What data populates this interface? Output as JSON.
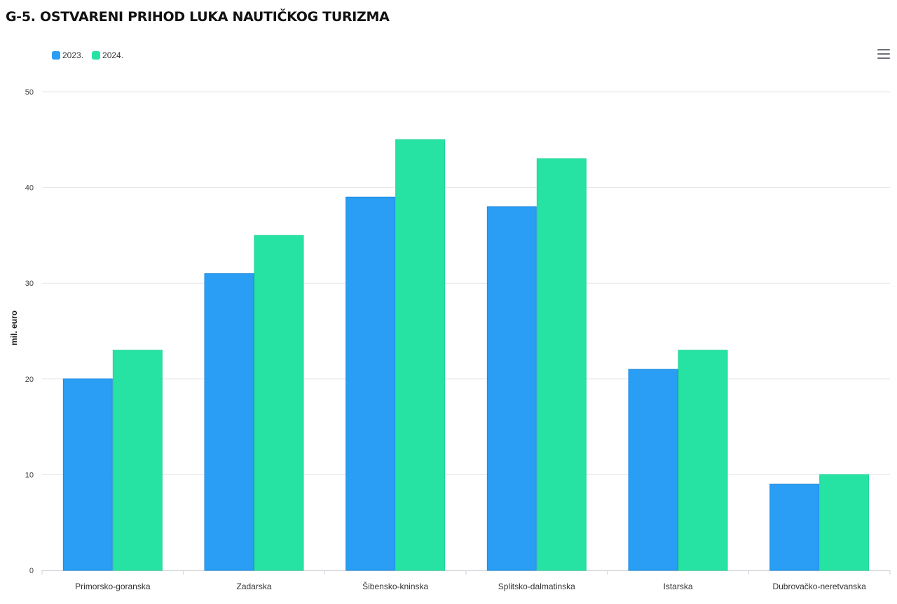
{
  "title": "G-5. OSTVARENI PRIHOD LUKA NAUTIČKOG TURIZMA",
  "legend": [
    {
      "label": "2023.",
      "color": "#2a9df4"
    },
    {
      "label": "2024.",
      "color": "#27e3a3"
    }
  ],
  "menu_icon": "hamburger-menu-icon",
  "chart_data": {
    "type": "bar",
    "title": "G-5. OSTVARENI PRIHOD LUKA NAUTIČKOG TURIZMA",
    "xlabel": "",
    "ylabel": "mil. euro",
    "ylim": [
      0,
      50
    ],
    "yticks": [
      0,
      10,
      20,
      30,
      40,
      50
    ],
    "grid": true,
    "legend_position": "top-left",
    "categories": [
      "Primorsko-goranska",
      "Zadarska",
      "Šibensko-kninska",
      "Splitsko-dalmatinska",
      "Istarska",
      "Dubrovačko-neretvanska"
    ],
    "series": [
      {
        "name": "2023.",
        "color": "#2a9df4",
        "values": [
          20,
          31,
          39,
          38,
          21,
          9
        ]
      },
      {
        "name": "2024.",
        "color": "#27e3a3",
        "values": [
          23,
          35,
          45,
          43,
          23,
          10
        ]
      }
    ]
  }
}
